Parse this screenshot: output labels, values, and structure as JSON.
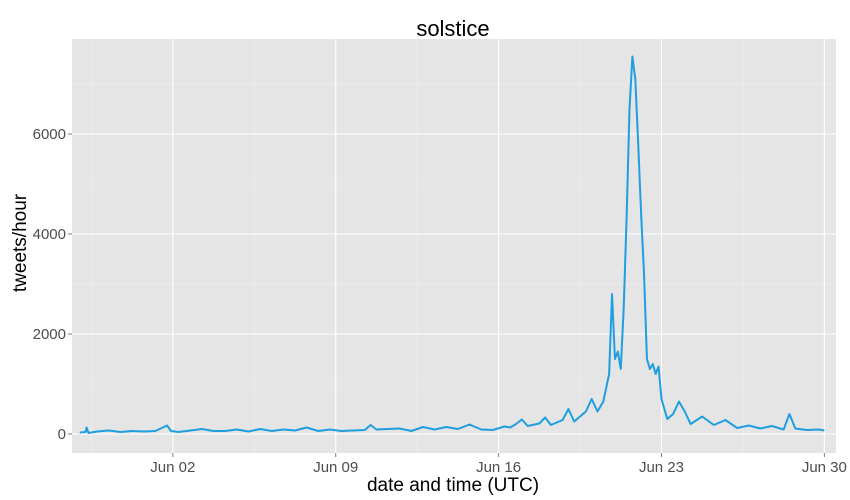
{
  "chart_data": {
    "type": "line",
    "title": "solstice",
    "xlabel": "date and time (UTC)",
    "ylabel": "tweets/hour",
    "xlim": [
      "2015-05-28T16:00",
      "2015-06-30T12:00"
    ],
    "ylim": [
      -380,
      7900
    ],
    "x_ticks": [
      {
        "date": "2015-06-02",
        "label": "Jun 02"
      },
      {
        "date": "2015-06-09",
        "label": "Jun 09"
      },
      {
        "date": "2015-06-16",
        "label": "Jun 16"
      },
      {
        "date": "2015-06-23",
        "label": "Jun 23"
      },
      {
        "date": "2015-06-30",
        "label": "Jun 30"
      }
    ],
    "y_ticks": [
      0,
      2000,
      4000,
      6000
    ],
    "grid": true,
    "line_color": "#1f9ee0",
    "panel_color": "#e5e5e5",
    "series": [
      {
        "name": "",
        "points": [
          [
            "2015-05-29T00:00",
            30
          ],
          [
            "2015-05-29T06:00",
            40
          ],
          [
            "2015-05-29T07:00",
            130
          ],
          [
            "2015-05-29T09:00",
            20
          ],
          [
            "2015-05-29T18:00",
            50
          ],
          [
            "2015-05-30T06:00",
            70
          ],
          [
            "2015-05-30T18:00",
            40
          ],
          [
            "2015-05-31T06:00",
            60
          ],
          [
            "2015-05-31T18:00",
            50
          ],
          [
            "2015-06-01T06:00",
            60
          ],
          [
            "2015-06-01T18:00",
            170
          ],
          [
            "2015-06-01T22:00",
            60
          ],
          [
            "2015-06-02T06:00",
            40
          ],
          [
            "2015-06-02T18:00",
            70
          ],
          [
            "2015-06-03T06:00",
            100
          ],
          [
            "2015-06-03T18:00",
            60
          ],
          [
            "2015-06-04T06:00",
            60
          ],
          [
            "2015-06-04T18:00",
            90
          ],
          [
            "2015-06-05T06:00",
            50
          ],
          [
            "2015-06-05T18:00",
            100
          ],
          [
            "2015-06-06T06:00",
            60
          ],
          [
            "2015-06-06T18:00",
            90
          ],
          [
            "2015-06-07T06:00",
            70
          ],
          [
            "2015-06-07T18:00",
            130
          ],
          [
            "2015-06-08T06:00",
            60
          ],
          [
            "2015-06-08T18:00",
            90
          ],
          [
            "2015-06-09T06:00",
            60
          ],
          [
            "2015-06-09T18:00",
            70
          ],
          [
            "2015-06-10T06:00",
            80
          ],
          [
            "2015-06-10T12:00",
            180
          ],
          [
            "2015-06-10T18:00",
            90
          ],
          [
            "2015-06-11T06:00",
            100
          ],
          [
            "2015-06-11T18:00",
            110
          ],
          [
            "2015-06-12T06:00",
            60
          ],
          [
            "2015-06-12T18:00",
            140
          ],
          [
            "2015-06-13T06:00",
            90
          ],
          [
            "2015-06-13T18:00",
            140
          ],
          [
            "2015-06-14T06:00",
            100
          ],
          [
            "2015-06-14T18:00",
            190
          ],
          [
            "2015-06-15T06:00",
            90
          ],
          [
            "2015-06-15T18:00",
            80
          ],
          [
            "2015-06-16T06:00",
            150
          ],
          [
            "2015-06-16T12:00",
            130
          ],
          [
            "2015-06-16T18:00",
            200
          ],
          [
            "2015-06-17T00:00",
            290
          ],
          [
            "2015-06-17T06:00",
            160
          ],
          [
            "2015-06-17T18:00",
            210
          ],
          [
            "2015-06-18T00:00",
            330
          ],
          [
            "2015-06-18T06:00",
            180
          ],
          [
            "2015-06-18T18:00",
            280
          ],
          [
            "2015-06-19T00:00",
            500
          ],
          [
            "2015-06-19T06:00",
            250
          ],
          [
            "2015-06-19T18:00",
            450
          ],
          [
            "2015-06-20T00:00",
            700
          ],
          [
            "2015-06-20T06:00",
            450
          ],
          [
            "2015-06-20T12:00",
            650
          ],
          [
            "2015-06-20T18:00",
            1200
          ],
          [
            "2015-06-20T21:00",
            2800
          ],
          [
            "2015-06-21T00:00",
            1500
          ],
          [
            "2015-06-21T03:00",
            1650
          ],
          [
            "2015-06-21T06:00",
            1300
          ],
          [
            "2015-06-21T09:00",
            2500
          ],
          [
            "2015-06-21T12:00",
            4300
          ],
          [
            "2015-06-21T15:00",
            6500
          ],
          [
            "2015-06-21T18:00",
            7550
          ],
          [
            "2015-06-21T21:00",
            7100
          ],
          [
            "2015-06-22T00:00",
            5800
          ],
          [
            "2015-06-22T03:00",
            4400
          ],
          [
            "2015-06-22T06:00",
            3200
          ],
          [
            "2015-06-22T09:00",
            1500
          ],
          [
            "2015-06-22T12:00",
            1300
          ],
          [
            "2015-06-22T15:00",
            1400
          ],
          [
            "2015-06-22T18:00",
            1200
          ],
          [
            "2015-06-22T21:00",
            1350
          ],
          [
            "2015-06-23T00:00",
            700
          ],
          [
            "2015-06-23T06:00",
            300
          ],
          [
            "2015-06-23T12:00",
            400
          ],
          [
            "2015-06-23T18:00",
            650
          ],
          [
            "2015-06-24T00:00",
            450
          ],
          [
            "2015-06-24T06:00",
            200
          ],
          [
            "2015-06-24T18:00",
            350
          ],
          [
            "2015-06-25T06:00",
            180
          ],
          [
            "2015-06-25T18:00",
            280
          ],
          [
            "2015-06-26T06:00",
            120
          ],
          [
            "2015-06-26T18:00",
            170
          ],
          [
            "2015-06-27T06:00",
            110
          ],
          [
            "2015-06-27T18:00",
            160
          ],
          [
            "2015-06-28T06:00",
            90
          ],
          [
            "2015-06-28T12:00",
            400
          ],
          [
            "2015-06-28T18:00",
            110
          ],
          [
            "2015-06-29T06:00",
            80
          ],
          [
            "2015-06-29T18:00",
            90
          ],
          [
            "2015-06-30T00:00",
            70
          ]
        ]
      }
    ]
  }
}
